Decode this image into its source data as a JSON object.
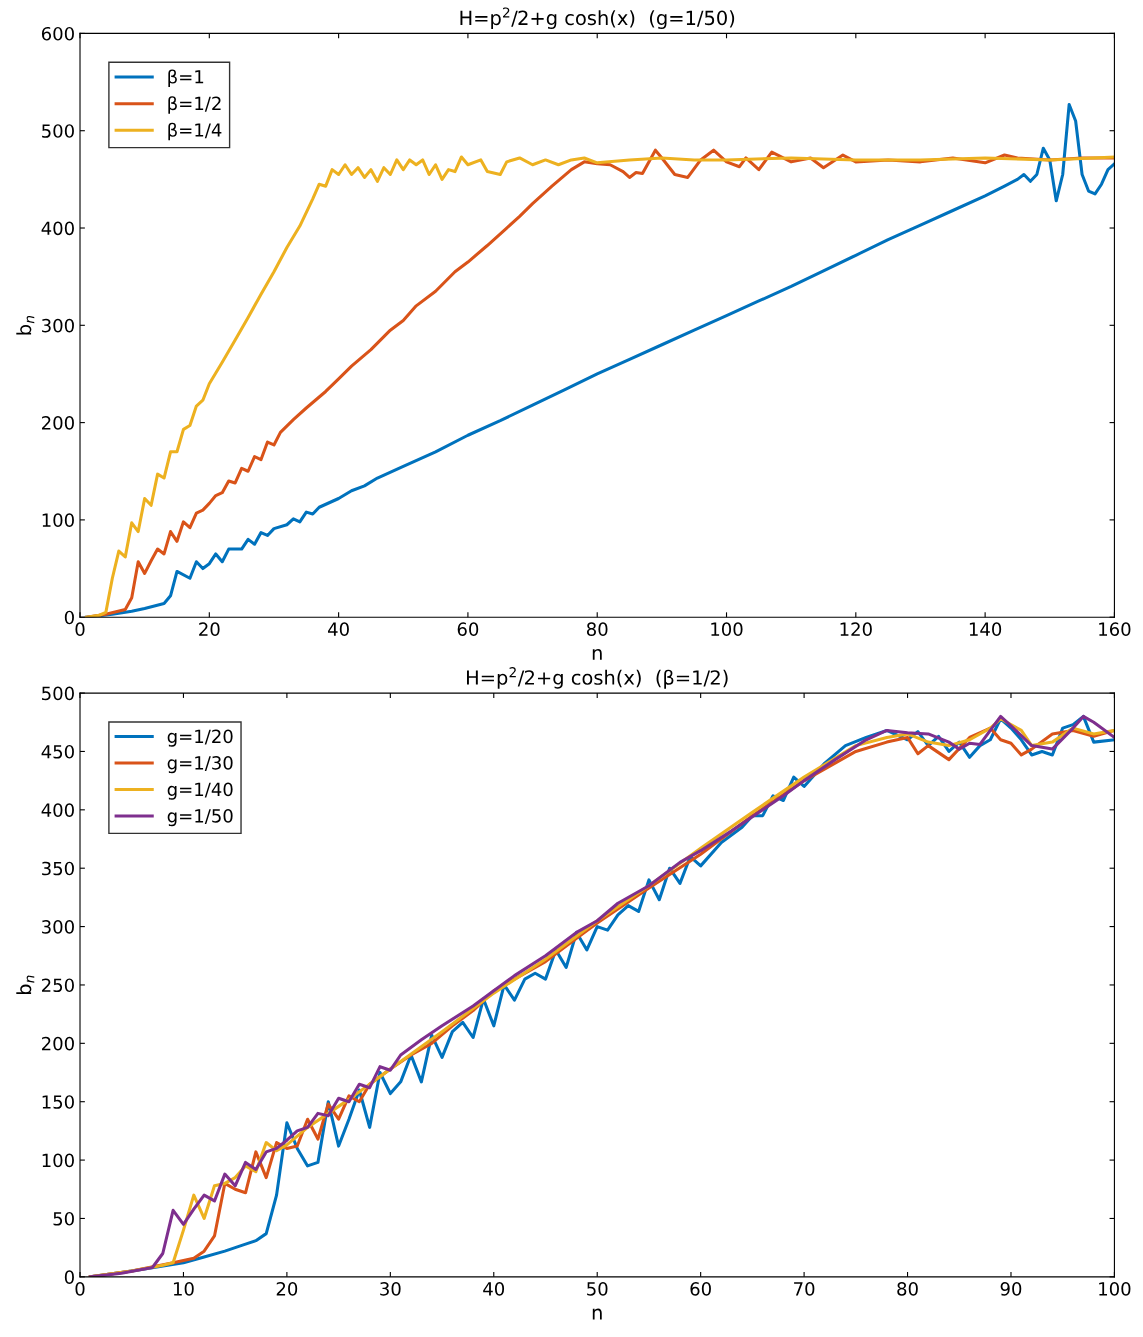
{
  "chart_data": [
    {
      "type": "line",
      "title": "H=p$^{2}$/2+g cosh(x)  (g=1/50)",
      "xlabel": "n",
      "ylabel": "b$_{n}$",
      "xlim": [
        0,
        160
      ],
      "xticks": [
        0,
        20,
        40,
        60,
        80,
        100,
        120,
        140,
        160
      ],
      "ylim": [
        0,
        600
      ],
      "yticks": [
        0,
        100,
        200,
        300,
        400,
        500,
        600
      ],
      "grid": false,
      "legend": "top left",
      "line_style": "solid",
      "marker": "none",
      "series": [
        {
          "name": "β=1",
          "color": "#0072bd",
          "x": [
            1,
            5,
            8,
            10,
            13,
            14,
            15,
            17,
            18,
            19,
            20,
            21,
            22,
            23,
            25,
            26,
            27,
            28,
            29,
            30,
            32,
            33,
            34,
            35,
            36,
            37,
            40,
            42,
            44,
            46,
            50,
            55,
            60,
            65,
            70,
            75,
            80,
            85,
            90,
            95,
            100,
            105,
            110,
            115,
            120,
            125,
            130,
            135,
            140,
            143,
            145,
            146,
            147,
            148,
            149,
            150,
            151,
            152,
            153,
            154,
            155,
            156,
            157,
            158,
            159,
            160
          ],
          "values": [
            0,
            3,
            6,
            9,
            14,
            22,
            47,
            40,
            57,
            50,
            55,
            65,
            57,
            70,
            70,
            80,
            75,
            87,
            84,
            91,
            95,
            101,
            98,
            108,
            106,
            113,
            122,
            130,
            135,
            143,
            155,
            170,
            187,
            202,
            218,
            234,
            250,
            265,
            280,
            295,
            310,
            325,
            340,
            356,
            372,
            388,
            403,
            418,
            433,
            443,
            450,
            455,
            448,
            455,
            482,
            470,
            428,
            455,
            527,
            510,
            455,
            438,
            435,
            445,
            460,
            466
          ]
        },
        {
          "name": "β=1/2",
          "color": "#d95319",
          "x": [
            1,
            4,
            7,
            8,
            9,
            10,
            11,
            12,
            13,
            14,
            15,
            16,
            17,
            18,
            19,
            20,
            21,
            22,
            23,
            24,
            25,
            26,
            27,
            28,
            29,
            30,
            31,
            33,
            35,
            38,
            40,
            42,
            45,
            48,
            50,
            52,
            55,
            58,
            60,
            63,
            66,
            68,
            70,
            73,
            76,
            78,
            80,
            82,
            84,
            85,
            86,
            87,
            89,
            90,
            92,
            94,
            96,
            98,
            100,
            102,
            103,
            105,
            107,
            110,
            113,
            115,
            118,
            120,
            125,
            130,
            135,
            140,
            143,
            145,
            150,
            155,
            160
          ],
          "values": [
            0,
            3,
            8,
            20,
            57,
            45,
            58,
            70,
            65,
            88,
            78,
            98,
            92,
            107,
            110,
            117,
            125,
            128,
            140,
            138,
            153,
            150,
            165,
            162,
            180,
            177,
            190,
            203,
            215,
            232,
            245,
            258,
            275,
            295,
            305,
            320,
            335,
            355,
            365,
            382,
            400,
            412,
            425,
            443,
            460,
            468,
            466,
            465,
            458,
            452,
            457,
            456,
            480,
            472,
            455,
            452,
            470,
            480,
            468,
            463,
            472,
            460,
            478,
            468,
            472,
            462,
            475,
            468,
            470,
            468,
            472,
            467,
            475,
            472,
            470,
            472,
            472
          ]
        },
        {
          "name": "β=1/4",
          "color": "#edb120",
          "x": [
            1,
            3,
            4,
            5,
            6,
            7,
            8,
            9,
            10,
            11,
            12,
            13,
            14,
            15,
            16,
            17,
            18,
            19,
            20,
            22,
            24,
            26,
            28,
            30,
            32,
            34,
            36,
            37,
            38,
            39,
            40,
            41,
            42,
            43,
            44,
            45,
            46,
            47,
            48,
            49,
            50,
            51,
            52,
            53,
            54,
            55,
            56,
            57,
            58,
            59,
            60,
            62,
            63,
            65,
            66,
            68,
            70,
            72,
            74,
            76,
            78,
            80,
            85,
            90,
            95,
            100,
            110,
            120,
            130,
            140,
            150,
            160
          ],
          "values": [
            0,
            2,
            5,
            40,
            68,
            62,
            97,
            88,
            122,
            115,
            147,
            143,
            170,
            170,
            193,
            197,
            217,
            223,
            240,
            262,
            285,
            308,
            332,
            355,
            380,
            402,
            430,
            445,
            443,
            460,
            455,
            465,
            455,
            462,
            452,
            460,
            448,
            462,
            455,
            470,
            460,
            470,
            465,
            470,
            455,
            465,
            450,
            460,
            458,
            473,
            465,
            470,
            458,
            455,
            468,
            472,
            465,
            470,
            465,
            470,
            472,
            467,
            470,
            472,
            470,
            470,
            472,
            470,
            470,
            472,
            470,
            473
          ]
        }
      ]
    },
    {
      "type": "line",
      "title": "H=p$^{2}$/2+g cosh(x)  (β=1/2)",
      "xlabel": "n",
      "ylabel": "b$_{n}$",
      "xlim": [
        0,
        100
      ],
      "xticks": [
        0,
        10,
        20,
        30,
        40,
        50,
        60,
        70,
        80,
        90,
        100
      ],
      "ylim": [
        0,
        500
      ],
      "yticks": [
        0,
        50,
        100,
        150,
        200,
        250,
        300,
        350,
        400,
        450,
        500
      ],
      "grid": false,
      "legend": "top left",
      "line_style": "solid",
      "marker": "none",
      "series": [
        {
          "name": "g=1/20",
          "color": "#0072bd",
          "x": [
            1,
            5,
            10,
            12,
            14,
            16,
            17,
            18,
            19,
            20,
            21,
            22,
            23,
            24,
            25,
            26,
            27,
            28,
            29,
            30,
            31,
            32,
            33,
            34,
            35,
            36,
            37,
            38,
            39,
            40,
            41,
            42,
            43,
            44,
            45,
            46,
            47,
            48,
            49,
            50,
            51,
            52,
            53,
            54,
            55,
            56,
            57,
            58,
            59,
            60,
            62,
            64,
            65,
            66,
            67,
            68,
            69,
            70,
            72,
            74,
            76,
            78,
            80,
            81,
            82,
            83,
            84,
            85,
            86,
            87,
            88,
            89,
            90,
            91,
            92,
            93,
            94,
            95,
            96,
            97,
            98,
            100
          ],
          "values": [
            0,
            5,
            12,
            17,
            22,
            28,
            31,
            37,
            70,
            132,
            110,
            95,
            98,
            150,
            112,
            135,
            160,
            128,
            175,
            157,
            167,
            190,
            167,
            207,
            188,
            210,
            218,
            205,
            238,
            215,
            250,
            237,
            255,
            260,
            255,
            280,
            265,
            295,
            280,
            300,
            297,
            310,
            318,
            313,
            340,
            323,
            350,
            337,
            360,
            352,
            372,
            385,
            395,
            395,
            412,
            408,
            428,
            420,
            440,
            455,
            462,
            468,
            460,
            467,
            455,
            463,
            450,
            458,
            445,
            455,
            460,
            478,
            470,
            460,
            447,
            450,
            447,
            470,
            473,
            480,
            458,
            460
          ]
        },
        {
          "name": "g=1/30",
          "color": "#d95319",
          "x": [
            1,
            5,
            9,
            10,
            11,
            12,
            13,
            14,
            15,
            16,
            17,
            18,
            19,
            20,
            21,
            22,
            23,
            24,
            25,
            26,
            27,
            28,
            30,
            32,
            34,
            36,
            38,
            40,
            42,
            45,
            48,
            50,
            55,
            60,
            65,
            70,
            75,
            78,
            80,
            81,
            82,
            84,
            86,
            88,
            89,
            90,
            91,
            92,
            94,
            96,
            98,
            100
          ],
          "values": [
            0,
            5,
            12,
            14,
            16,
            22,
            35,
            80,
            75,
            72,
            107,
            85,
            115,
            110,
            112,
            135,
            118,
            148,
            135,
            155,
            150,
            165,
            178,
            190,
            200,
            215,
            228,
            245,
            255,
            270,
            290,
            303,
            333,
            362,
            395,
            425,
            450,
            458,
            462,
            448,
            455,
            443,
            462,
            470,
            460,
            457,
            447,
            452,
            465,
            468,
            463,
            468
          ]
        },
        {
          "name": "g=1/40",
          "color": "#edb120",
          "x": [
            1,
            5,
            8,
            9,
            10,
            11,
            12,
            13,
            14,
            15,
            16,
            17,
            18,
            19,
            20,
            22,
            24,
            26,
            28,
            30,
            35,
            40,
            45,
            50,
            55,
            60,
            65,
            70,
            75,
            78,
            80,
            82,
            84,
            86,
            88,
            89,
            91,
            92,
            94,
            96,
            98,
            100
          ],
          "values": [
            0,
            5,
            10,
            12,
            40,
            70,
            50,
            78,
            80,
            85,
            95,
            90,
            115,
            108,
            113,
            128,
            140,
            152,
            165,
            178,
            210,
            243,
            272,
            305,
            335,
            367,
            398,
            428,
            455,
            462,
            465,
            458,
            455,
            460,
            470,
            478,
            468,
            455,
            458,
            470,
            465,
            468
          ]
        },
        {
          "name": "g=1/50",
          "color": "#7e2f8e",
          "x": [
            1,
            4,
            7,
            8,
            9,
            10,
            11,
            12,
            13,
            14,
            15,
            16,
            17,
            18,
            19,
            20,
            21,
            22,
            23,
            24,
            25,
            26,
            27,
            28,
            29,
            30,
            31,
            33,
            35,
            38,
            40,
            42,
            45,
            48,
            50,
            52,
            55,
            58,
            60,
            63,
            66,
            68,
            70,
            73,
            76,
            78,
            80,
            82,
            84,
            85,
            86,
            87,
            89,
            90,
            92,
            94,
            96,
            97,
            98,
            100
          ],
          "values": [
            0,
            3,
            8,
            20,
            57,
            45,
            58,
            70,
            65,
            88,
            78,
            98,
            92,
            107,
            110,
            117,
            125,
            128,
            140,
            138,
            153,
            150,
            165,
            162,
            180,
            177,
            190,
            203,
            215,
            232,
            245,
            258,
            275,
            295,
            305,
            320,
            335,
            355,
            365,
            382,
            400,
            412,
            425,
            443,
            460,
            468,
            466,
            465,
            458,
            452,
            457,
            456,
            480,
            472,
            455,
            452,
            470,
            480,
            475,
            462
          ]
        }
      ]
    }
  ]
}
